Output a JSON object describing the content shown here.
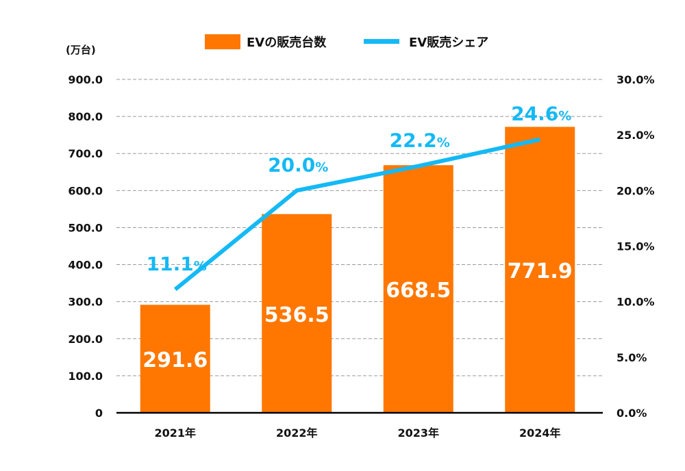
{
  "chart_data": {
    "type": "bar+line",
    "categories": [
      "2021年",
      "2022年",
      "2023年",
      "2024年"
    ],
    "series": [
      {
        "name": "EVの販売台数",
        "type": "bar",
        "axis": "left",
        "color": "#FF7700",
        "values": [
          291.6,
          536.5,
          668.5,
          771.9
        ],
        "labels": [
          "291.6",
          "536.5",
          "668.5",
          "771.9"
        ]
      },
      {
        "name": "EV販売シェア",
        "type": "line",
        "axis": "right",
        "color": "#14B9F5",
        "values": [
          11.1,
          20.0,
          22.2,
          24.6
        ],
        "labels": [
          "11.1",
          "20.0",
          "22.2",
          "24.6"
        ],
        "label_suffix": "%"
      }
    ],
    "left_axis": {
      "unit_label": "(万台)",
      "range": [
        0,
        900
      ],
      "ticks": [
        "0",
        "100.0",
        "200.0",
        "300.0",
        "400.0",
        "500.0",
        "600.0",
        "700.0",
        "800.0",
        "900.0"
      ]
    },
    "right_axis": {
      "range": [
        0,
        30
      ],
      "ticks": [
        "0.0%",
        "5.0%",
        "10.0%",
        "15.0%",
        "20.0%",
        "25.0%",
        "30.0%"
      ]
    },
    "grid": "horizontal dashed",
    "legend": "top-center"
  }
}
